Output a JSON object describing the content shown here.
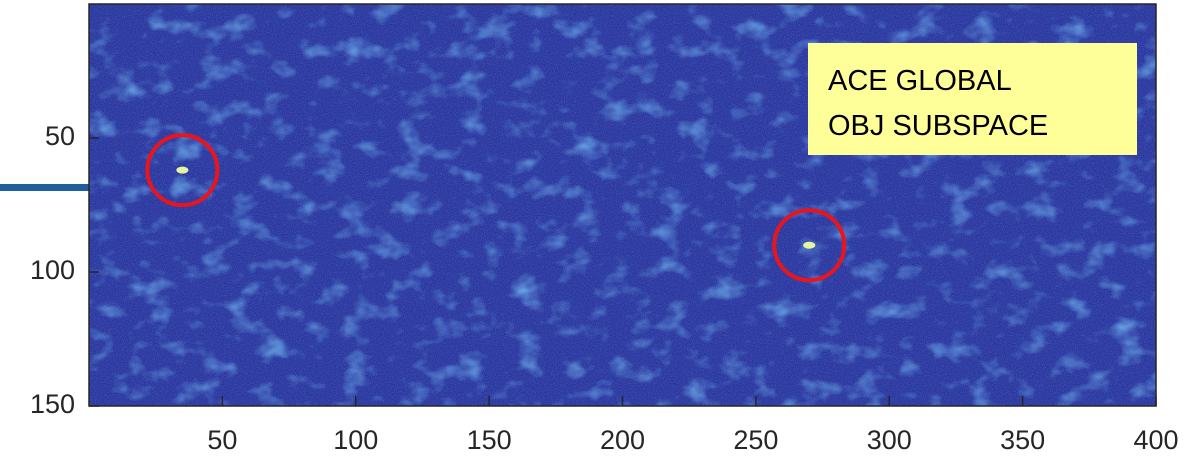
{
  "chart_data": {
    "type": "image",
    "xlim": [
      0,
      400
    ],
    "ylim": [
      150,
      0
    ],
    "xticks": [
      50,
      100,
      150,
      200,
      250,
      300,
      350,
      400
    ],
    "yticks": [
      50,
      100,
      150
    ],
    "detections": {
      "x": [
        35,
        270
      ],
      "y": [
        62,
        90
      ],
      "color": "#e8151c"
    },
    "annotation": [
      "ACE GLOBAL",
      "OBJ SUBSPACE"
    ]
  }
}
